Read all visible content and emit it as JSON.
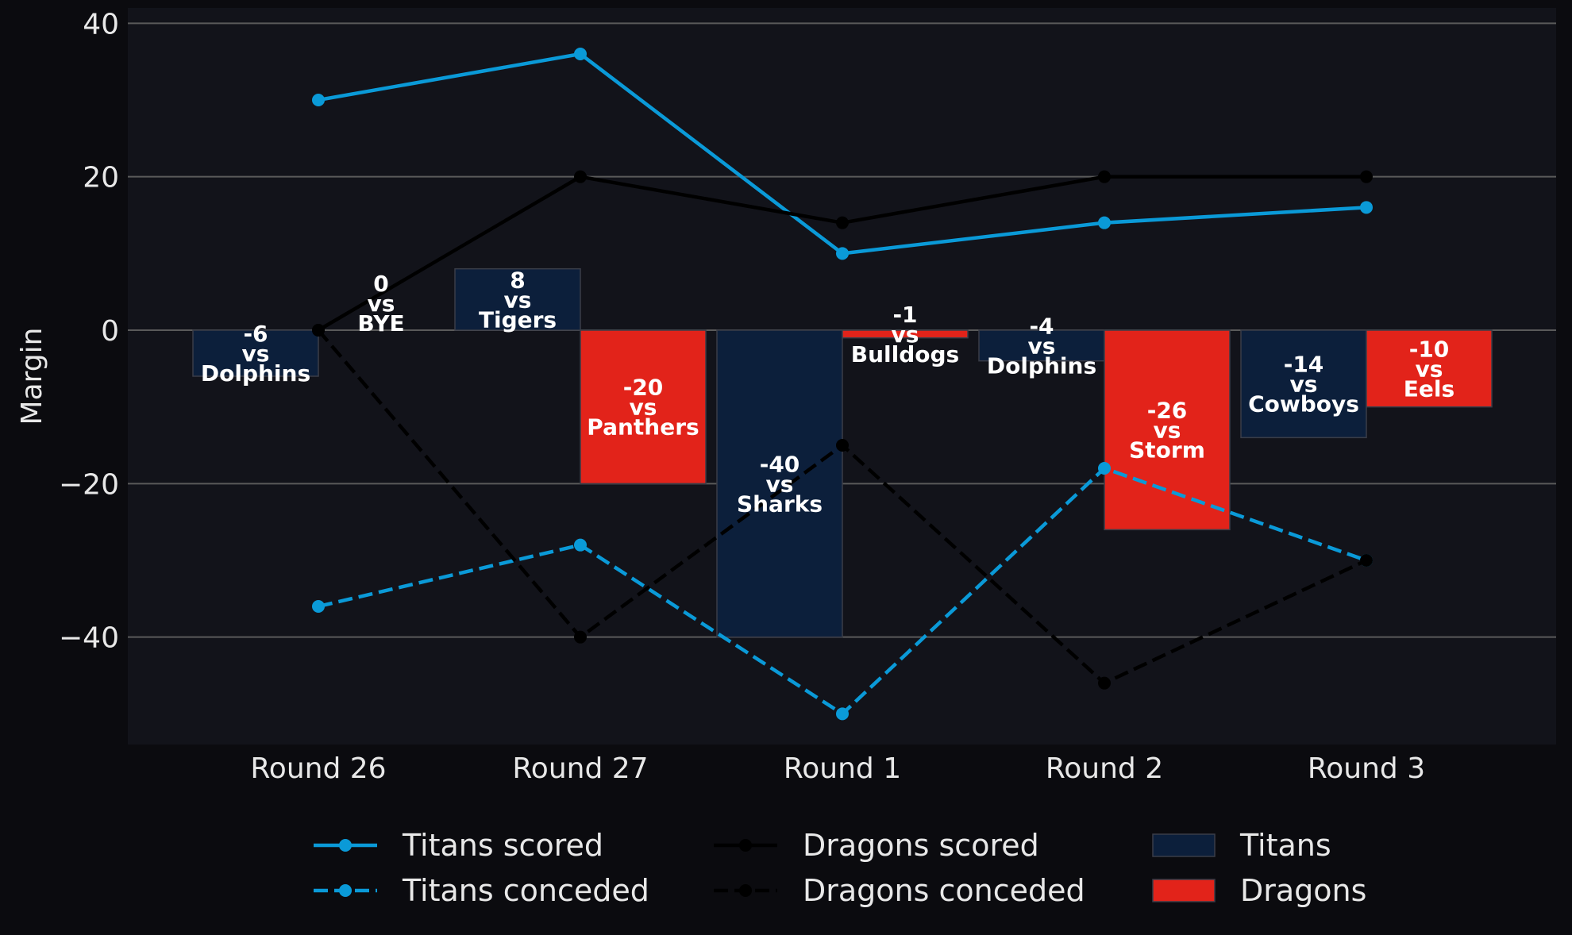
{
  "chart_data": {
    "type": "bar",
    "title": "",
    "xlabel": "",
    "ylabel": "Margin",
    "ylim": [
      -54,
      42
    ],
    "yticks": [
      -40,
      -20,
      0,
      20,
      40
    ],
    "ytick_labels": [
      "−40",
      "−20",
      "0",
      "20",
      "40"
    ],
    "grid": "horizontal",
    "legend_position": "bottom",
    "categories": [
      "Round 26",
      "Round 27",
      "Round 1",
      "Round 2",
      "Round 3"
    ],
    "colors": {
      "background": "#0b0b0f",
      "plot_background": "#12131a",
      "grid": "#5a5a5a",
      "titans_bar": "#0c1f3b",
      "dragons_bar": "#e2231a",
      "titans_line": "#0a9ad8",
      "dragons_line": "#000000",
      "text": "#e8e8e8"
    },
    "bars": [
      {
        "team": "Titans",
        "values": [
          -6,
          8,
          -40,
          -4,
          -14
        ],
        "labels": [
          "-6\nvs\nDolphins",
          "8\nvs\nTigers",
          "-40\nvs\nSharks",
          "-4\nvs\nDolphins",
          "-14\nvs\nCowboys"
        ]
      },
      {
        "team": "Dragons",
        "values": [
          0,
          -20,
          -1,
          -26,
          -10
        ],
        "labels": [
          "0\nvs\nBYE",
          "-20\nvs\nPanthers",
          "-1\nvs\nBulldogs",
          "-26\nvs\nStorm",
          "-10\nvs\nEels"
        ]
      }
    ],
    "series": [
      {
        "name": "Titans scored",
        "team": "Titans",
        "style": "solid",
        "values": [
          30,
          36,
          10,
          14,
          16
        ]
      },
      {
        "name": "Titans conceded",
        "team": "Titans",
        "style": "dashed",
        "values": [
          -36,
          -28,
          -50,
          -18,
          -30
        ]
      },
      {
        "name": "Dragons scored",
        "team": "Dragons",
        "style": "solid",
        "values": [
          0,
          20,
          14,
          20,
          20
        ]
      },
      {
        "name": "Dragons conceded",
        "team": "Dragons",
        "style": "dashed",
        "values": [
          0,
          -40,
          -15,
          -46,
          -30
        ]
      }
    ],
    "legend": [
      {
        "label": "Titans scored",
        "kind": "line",
        "team": "Titans",
        "style": "solid"
      },
      {
        "label": "Titans conceded",
        "kind": "line",
        "team": "Titans",
        "style": "dashed"
      },
      {
        "label": "Dragons scored",
        "kind": "line",
        "team": "Dragons",
        "style": "solid"
      },
      {
        "label": "Dragons conceded",
        "kind": "line",
        "team": "Dragons",
        "style": "dashed"
      },
      {
        "label": "Titans",
        "kind": "patch",
        "team": "Titans"
      },
      {
        "label": "Dragons",
        "kind": "patch",
        "team": "Dragons"
      }
    ]
  }
}
